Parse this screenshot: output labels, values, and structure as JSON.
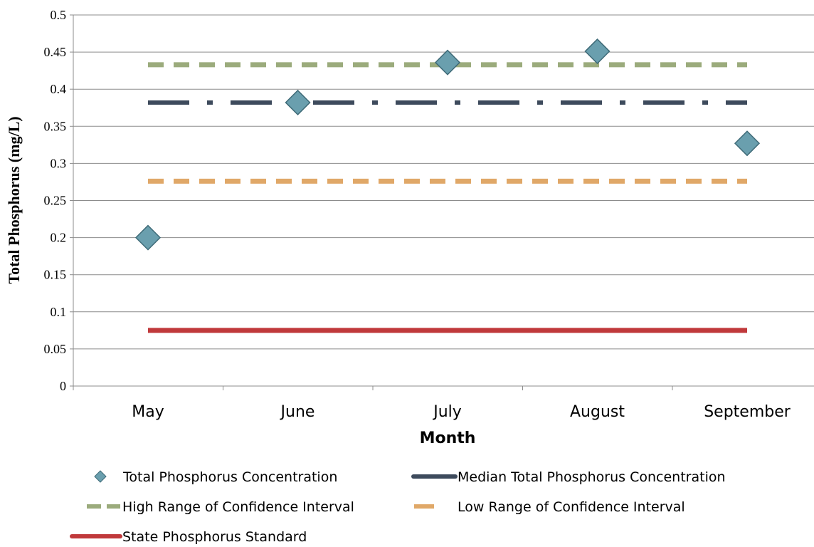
{
  "chart_data": {
    "type": "line",
    "categories": [
      "May",
      "June",
      "July",
      "August",
      "September"
    ],
    "xlabel": "Month",
    "ylabel": "Total Phosphorus (mg/L)",
    "ylim": [
      0,
      0.5
    ],
    "yticks": [
      0,
      0.05,
      0.1,
      0.15,
      0.2,
      0.25,
      0.3,
      0.35,
      0.4,
      0.45,
      0.5
    ],
    "ytick_labels": [
      "0",
      "0.05",
      "0.1",
      "0.15",
      "0.2",
      "0.25",
      "0.3",
      "0.35",
      "0.4",
      "0.45",
      "0.5"
    ],
    "grid": true,
    "legend_position": "bottom",
    "series": [
      {
        "name": "Total Phosphorus Concentration",
        "kind": "scatter",
        "marker": "diamond",
        "color": "#6a9fae",
        "x": [
          0.0,
          1.0,
          2.0,
          3.0,
          4.0
        ],
        "values": [
          0.2,
          0.382,
          0.436,
          0.451,
          0.327
        ]
      },
      {
        "name": "Median Total Phosphorus Concentration",
        "kind": "line",
        "style": "dash-dot",
        "color": "#3d4a5c",
        "x": [
          0.0,
          4.0
        ],
        "values": [
          0.382,
          0.382
        ]
      },
      {
        "name": "High Range of Confidence Interval",
        "kind": "line",
        "style": "dashed",
        "color": "#9bab7c",
        "x": [
          0.0,
          4.0
        ],
        "values": [
          0.433,
          0.433
        ]
      },
      {
        "name": "Low Range of Confidence Interval",
        "kind": "line",
        "style": "dashed",
        "color": "#e0a868",
        "x": [
          0.0,
          4.0
        ],
        "values": [
          0.276,
          0.276
        ]
      },
      {
        "name": "State Phosphorus Standard",
        "kind": "line",
        "style": "solid",
        "color": "#c0393b",
        "x": [
          0.0,
          4.0
        ],
        "values": [
          0.075,
          0.075
        ]
      }
    ]
  }
}
